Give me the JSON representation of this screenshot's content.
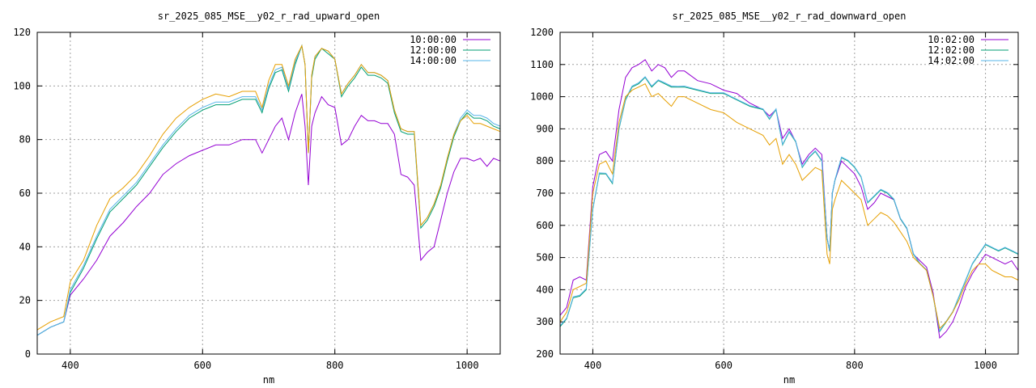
{
  "colors": {
    "purple": "#9400d3",
    "teal": "#009e73",
    "cyan": "#56b4e9",
    "orange": "#e69f00"
  },
  "chart_data": [
    {
      "type": "line",
      "title": "sr_2025_085_MSE__y02_r_rad_upward_open",
      "xlabel": "nm",
      "ylabel": "",
      "xlim": [
        350,
        1050
      ],
      "ylim": [
        0,
        120
      ],
      "xticks": [
        400,
        600,
        800,
        1000
      ],
      "yticks": [
        0,
        20,
        40,
        60,
        80,
        100,
        120
      ],
      "grid": true,
      "legend_position": "top-right",
      "x": [
        350,
        370,
        390,
        400,
        420,
        440,
        460,
        480,
        500,
        520,
        540,
        560,
        580,
        600,
        620,
        640,
        660,
        680,
        690,
        700,
        710,
        720,
        730,
        740,
        750,
        755,
        760,
        765,
        770,
        780,
        790,
        800,
        810,
        820,
        830,
        840,
        850,
        860,
        870,
        880,
        890,
        900,
        910,
        920,
        930,
        940,
        950,
        960,
        970,
        980,
        990,
        1000,
        1010,
        1020,
        1030,
        1040,
        1050
      ],
      "series": [
        {
          "name": "10:00:00",
          "color": "#9400d3",
          "values": [
            7,
            10,
            12,
            22,
            28,
            35,
            44,
            49,
            55,
            60,
            67,
            71,
            74,
            76,
            78,
            78,
            80,
            80,
            75,
            80,
            85,
            88,
            80,
            90,
            97,
            85,
            63,
            85,
            90,
            96,
            93,
            92,
            78,
            80,
            85,
            89,
            87,
            87,
            86,
            86,
            82,
            67,
            66,
            63,
            35,
            38,
            40,
            50,
            60,
            68,
            73,
            73,
            72,
            73,
            70,
            73,
            72
          ]
        },
        {
          "name": "12:00:00",
          "color": "#009e73",
          "values": [
            7,
            10,
            12,
            23,
            32,
            43,
            53,
            58,
            63,
            70,
            77,
            83,
            88,
            91,
            93,
            93,
            95,
            95,
            90,
            99,
            105,
            106,
            98,
            108,
            115,
            108,
            75,
            103,
            110,
            114,
            112,
            110,
            96,
            100,
            103,
            107,
            104,
            104,
            103,
            101,
            90,
            83,
            82,
            82,
            47,
            50,
            55,
            62,
            72,
            81,
            87,
            90,
            88,
            88,
            87,
            85,
            84
          ]
        },
        {
          "name": "14:00:00",
          "color": "#56b4e9",
          "values": [
            7,
            10,
            12,
            24,
            33,
            44,
            54,
            59,
            64,
            71,
            78,
            84,
            89,
            92,
            94,
            94,
            96,
            96,
            91,
            100,
            106,
            107,
            99,
            109,
            115,
            108,
            75,
            104,
            111,
            114,
            113,
            110,
            97,
            101,
            104,
            108,
            105,
            105,
            104,
            102,
            91,
            84,
            83,
            83,
            48,
            51,
            56,
            63,
            73,
            82,
            88,
            91,
            89,
            89,
            88,
            86,
            85
          ]
        },
        {
          "name": "",
          "color": "#e69f00",
          "values": [
            9,
            12,
            14,
            27,
            35,
            48,
            58,
            62,
            67,
            74,
            82,
            88,
            92,
            95,
            97,
            96,
            98,
            98,
            92,
            102,
            108,
            108,
            100,
            110,
            115,
            108,
            75,
            104,
            111,
            114,
            113,
            110,
            97,
            101,
            104,
            108,
            105,
            105,
            104,
            102,
            91,
            84,
            83,
            83,
            48,
            51,
            56,
            63,
            73,
            82,
            87,
            89,
            86,
            86,
            85,
            84,
            83
          ]
        }
      ]
    },
    {
      "type": "line",
      "title": "sr_2025_085_MSE__y02_r_rad_downward_open",
      "xlabel": "nm",
      "ylabel": "",
      "xlim": [
        350,
        1050
      ],
      "ylim": [
        200,
        1200
      ],
      "xticks": [
        400,
        600,
        800,
        1000
      ],
      "yticks": [
        200,
        300,
        400,
        500,
        600,
        700,
        800,
        900,
        1000,
        1100,
        1200
      ],
      "grid": true,
      "legend_position": "top-right",
      "x": [
        350,
        360,
        370,
        380,
        390,
        400,
        410,
        420,
        430,
        440,
        450,
        460,
        470,
        480,
        490,
        500,
        510,
        520,
        530,
        540,
        560,
        580,
        600,
        620,
        640,
        660,
        670,
        680,
        690,
        700,
        710,
        720,
        730,
        740,
        750,
        758,
        762,
        766,
        770,
        780,
        790,
        800,
        810,
        820,
        830,
        840,
        850,
        860,
        870,
        880,
        890,
        900,
        910,
        920,
        930,
        940,
        950,
        960,
        970,
        980,
        990,
        1000,
        1010,
        1020,
        1030,
        1040,
        1050
      ],
      "series": [
        {
          "name": "10:02:00",
          "color": "#9400d3",
          "values": [
            320,
            345,
            430,
            440,
            430,
            720,
            820,
            830,
            800,
            960,
            1060,
            1090,
            1100,
            1115,
            1080,
            1100,
            1090,
            1060,
            1080,
            1080,
            1050,
            1040,
            1020,
            1010,
            980,
            960,
            940,
            960,
            870,
            900,
            860,
            790,
            820,
            840,
            820,
            560,
            520,
            700,
            740,
            800,
            780,
            760,
            720,
            650,
            670,
            700,
            690,
            680,
            620,
            590,
            510,
            490,
            470,
            390,
            250,
            270,
            300,
            350,
            410,
            450,
            480,
            510,
            500,
            490,
            480,
            490,
            460
          ]
        },
        {
          "name": "12:02:00",
          "color": "#009e73",
          "values": [
            285,
            310,
            375,
            380,
            400,
            650,
            760,
            760,
            730,
            900,
            990,
            1030,
            1040,
            1060,
            1030,
            1050,
            1040,
            1030,
            1030,
            1030,
            1020,
            1010,
            1010,
            990,
            970,
            960,
            930,
            960,
            850,
            890,
            860,
            780,
            810,
            830,
            800,
            560,
            520,
            700,
            740,
            810,
            800,
            780,
            750,
            670,
            690,
            710,
            700,
            680,
            620,
            590,
            510,
            480,
            460,
            380,
            270,
            300,
            330,
            380,
            430,
            480,
            510,
            540,
            530,
            520,
            530,
            520,
            510
          ]
        },
        {
          "name": "14:02:00",
          "color": "#56b4e9",
          "values": [
            288,
            312,
            378,
            383,
            403,
            652,
            763,
            762,
            733,
            903,
            993,
            1033,
            1043,
            1062,
            1033,
            1052,
            1043,
            1033,
            1032,
            1033,
            1022,
            1012,
            1012,
            992,
            972,
            962,
            932,
            962,
            852,
            892,
            862,
            782,
            812,
            832,
            802,
            562,
            522,
            702,
            742,
            812,
            802,
            782,
            752,
            672,
            692,
            712,
            702,
            682,
            622,
            592,
            512,
            482,
            462,
            382,
            272,
            302,
            332,
            382,
            432,
            482,
            512,
            542,
            532,
            522,
            532,
            522,
            512
          ]
        },
        {
          "name": "",
          "color": "#e69f00",
          "values": [
            300,
            330,
            400,
            410,
            420,
            700,
            790,
            800,
            760,
            920,
            1000,
            1020,
            1030,
            1040,
            1000,
            1010,
            990,
            970,
            1000,
            1000,
            980,
            960,
            950,
            920,
            900,
            880,
            850,
            870,
            790,
            820,
            790,
            740,
            760,
            780,
            770,
            510,
            480,
            650,
            680,
            740,
            720,
            700,
            680,
            600,
            620,
            640,
            630,
            610,
            580,
            550,
            500,
            480,
            460,
            380,
            280,
            300,
            330,
            370,
            420,
            460,
            480,
            480,
            460,
            450,
            440,
            440,
            430
          ]
        }
      ]
    }
  ]
}
